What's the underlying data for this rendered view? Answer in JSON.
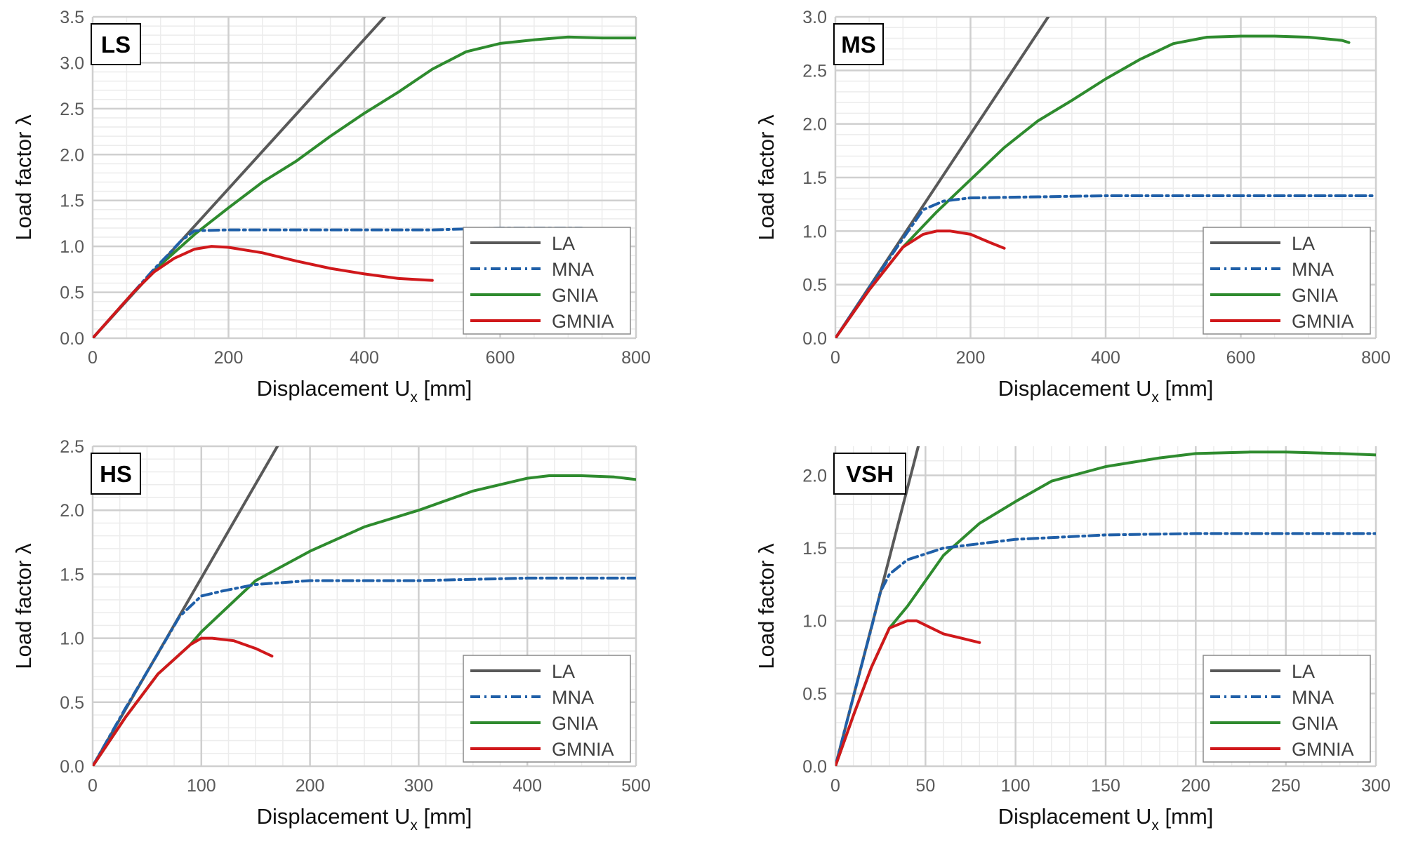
{
  "chart_data": [
    {
      "type": "line",
      "panel_label": "LS",
      "xlabel": "Displacement U",
      "xlabel_sub": "x",
      "xlabel_unit": "[mm]",
      "ylabel": "Load factor λ",
      "xlim": [
        0,
        800
      ],
      "ylim": [
        0,
        3.5
      ],
      "xticks": [
        0,
        200,
        400,
        600,
        800
      ],
      "xtick_labels": [
        "0",
        "200",
        "400",
        "600",
        "800"
      ],
      "yticks": [
        0,
        0.5,
        1.0,
        1.5,
        2.0,
        2.5,
        3.0,
        3.5
      ],
      "ytick_labels": [
        "0.0",
        "0.5",
        "1.0",
        "1.5",
        "2.0",
        "2.5",
        "3.0",
        "3.5"
      ],
      "x_minor": 50,
      "y_minor": 0.1,
      "legend": "bottom-right",
      "series": [
        {
          "name": "LA",
          "x": [
            0,
            430
          ],
          "y": [
            0,
            3.5
          ]
        },
        {
          "name": "MNA",
          "x": [
            0,
            30,
            60,
            90,
            110,
            130,
            150,
            200,
            300,
            400,
            500,
            600,
            720
          ],
          "y": [
            0,
            0.25,
            0.5,
            0.75,
            0.9,
            1.06,
            1.17,
            1.18,
            1.18,
            1.18,
            1.18,
            1.2,
            1.2
          ]
        },
        {
          "name": "GNIA",
          "x": [
            0,
            30,
            60,
            90,
            100,
            150,
            200,
            250,
            300,
            350,
            400,
            450,
            500,
            550,
            600,
            650,
            700,
            750,
            800
          ],
          "y": [
            0,
            0.25,
            0.5,
            0.72,
            0.8,
            1.13,
            1.42,
            1.7,
            1.93,
            2.2,
            2.45,
            2.68,
            2.93,
            3.12,
            3.21,
            3.25,
            3.28,
            3.27,
            3.27
          ]
        },
        {
          "name": "GMNIA",
          "x": [
            0,
            30,
            60,
            90,
            120,
            150,
            175,
            200,
            250,
            300,
            350,
            400,
            450,
            500
          ],
          "y": [
            0,
            0.25,
            0.5,
            0.72,
            0.87,
            0.97,
            1.0,
            0.99,
            0.93,
            0.84,
            0.76,
            0.7,
            0.65,
            0.63
          ]
        }
      ]
    },
    {
      "type": "line",
      "panel_label": "MS",
      "xlabel": "Displacement U",
      "xlabel_sub": "x",
      "xlabel_unit": "[mm]",
      "ylabel": "Load factor λ",
      "xlim": [
        0,
        800
      ],
      "ylim": [
        0,
        3.0
      ],
      "xticks": [
        0,
        200,
        400,
        600,
        800
      ],
      "xtick_labels": [
        "0",
        "200",
        "400",
        "600",
        "800"
      ],
      "yticks": [
        0,
        0.5,
        1.0,
        1.5,
        2.0,
        2.5,
        3.0
      ],
      "ytick_labels": [
        "0.0",
        "0.5",
        "1.0",
        "1.5",
        "2.0",
        "2.5",
        "3.0"
      ],
      "x_minor": 50,
      "y_minor": 0.1,
      "legend": "bottom-right",
      "series": [
        {
          "name": "LA",
          "x": [
            0,
            315
          ],
          "y": [
            0,
            3.0
          ]
        },
        {
          "name": "MNA",
          "x": [
            0,
            50,
            100,
            130,
            160,
            200,
            300,
            400,
            500,
            600,
            700,
            800
          ],
          "y": [
            0,
            0.47,
            0.93,
            1.2,
            1.28,
            1.31,
            1.32,
            1.33,
            1.33,
            1.33,
            1.33,
            1.33
          ]
        },
        {
          "name": "GNIA",
          "x": [
            0,
            50,
            100,
            150,
            200,
            250,
            300,
            350,
            400,
            450,
            500,
            550,
            600,
            650,
            700,
            750,
            760
          ],
          "y": [
            0,
            0.45,
            0.85,
            1.18,
            1.48,
            1.78,
            2.03,
            2.22,
            2.42,
            2.6,
            2.75,
            2.81,
            2.82,
            2.82,
            2.81,
            2.78,
            2.76
          ]
        },
        {
          "name": "GMNIA",
          "x": [
            0,
            50,
            100,
            130,
            150,
            170,
            200,
            230,
            250
          ],
          "y": [
            0,
            0.45,
            0.85,
            0.97,
            1.0,
            1.0,
            0.97,
            0.89,
            0.84
          ]
        }
      ]
    },
    {
      "type": "line",
      "panel_label": "HS",
      "xlabel": "Displacement U",
      "xlabel_sub": "x",
      "xlabel_unit": "[mm]",
      "ylabel": "Load factor λ",
      "xlim": [
        0,
        500
      ],
      "ylim": [
        0,
        2.5
      ],
      "xticks": [
        0,
        100,
        200,
        300,
        400,
        500
      ],
      "xtick_labels": [
        "0",
        "100",
        "200",
        "300",
        "400",
        "500"
      ],
      "yticks": [
        0,
        0.5,
        1.0,
        1.5,
        2.0,
        2.5
      ],
      "ytick_labels": [
        "0.0",
        "0.5",
        "1.0",
        "1.5",
        "2.0",
        "2.5"
      ],
      "x_minor": 25,
      "y_minor": 0.1,
      "legend": "bottom-right",
      "series": [
        {
          "name": "LA",
          "x": [
            0,
            170
          ],
          "y": [
            0,
            2.5
          ]
        },
        {
          "name": "MNA",
          "x": [
            0,
            30,
            60,
            80,
            100,
            120,
            150,
            200,
            300,
            400,
            500
          ],
          "y": [
            0,
            0.45,
            0.88,
            1.17,
            1.33,
            1.37,
            1.42,
            1.45,
            1.45,
            1.47,
            1.47
          ]
        },
        {
          "name": "GNIA",
          "x": [
            0,
            30,
            60,
            90,
            100,
            150,
            200,
            250,
            300,
            350,
            400,
            420,
            450,
            480,
            500
          ],
          "y": [
            0,
            0.38,
            0.72,
            0.95,
            1.05,
            1.45,
            1.68,
            1.87,
            2.0,
            2.15,
            2.25,
            2.27,
            2.27,
            2.26,
            2.24
          ]
        },
        {
          "name": "GMNIA",
          "x": [
            0,
            30,
            60,
            90,
            100,
            110,
            130,
            150,
            165
          ],
          "y": [
            0,
            0.38,
            0.72,
            0.95,
            1.0,
            1.0,
            0.98,
            0.92,
            0.86
          ]
        }
      ]
    },
    {
      "type": "line",
      "panel_label": "VSH",
      "xlabel": "Displacement U",
      "xlabel_sub": "x",
      "xlabel_unit": "[mm]",
      "ylabel": "Load factor λ",
      "xlim": [
        0,
        300
      ],
      "ylim": [
        0,
        2.2
      ],
      "xticks": [
        0,
        50,
        100,
        150,
        200,
        250,
        300
      ],
      "xtick_labels": [
        "0",
        "50",
        "100",
        "150",
        "200",
        "250",
        "300"
      ],
      "yticks": [
        0,
        0.5,
        1.0,
        1.5,
        2.0
      ],
      "ytick_labels": [
        "0.0",
        "0.5",
        "1.0",
        "1.5",
        "2.0"
      ],
      "x_minor": 10,
      "y_minor": 0.1,
      "legend": "bottom-right",
      "series": [
        {
          "name": "LA",
          "x": [
            0,
            46
          ],
          "y": [
            0,
            2.2
          ]
        },
        {
          "name": "MNA",
          "x": [
            0,
            10,
            20,
            25,
            30,
            40,
            60,
            100,
            150,
            200,
            250,
            300
          ],
          "y": [
            0,
            0.48,
            0.95,
            1.2,
            1.32,
            1.42,
            1.5,
            1.56,
            1.59,
            1.6,
            1.6,
            1.6
          ]
        },
        {
          "name": "GNIA",
          "x": [
            0,
            10,
            20,
            30,
            40,
            60,
            80,
            100,
            120,
            150,
            180,
            200,
            230,
            250,
            280,
            300
          ],
          "y": [
            0,
            0.35,
            0.68,
            0.95,
            1.1,
            1.45,
            1.67,
            1.82,
            1.96,
            2.06,
            2.12,
            2.15,
            2.16,
            2.16,
            2.15,
            2.14
          ]
        },
        {
          "name": "GMNIA",
          "x": [
            0,
            10,
            20,
            30,
            40,
            45,
            50,
            60,
            70,
            80
          ],
          "y": [
            0,
            0.35,
            0.68,
            0.95,
            1.0,
            1.0,
            0.97,
            0.91,
            0.88,
            0.85
          ]
        }
      ]
    }
  ],
  "series_colors": {
    "LA": "#595959",
    "MNA": "#1f5fa8",
    "GNIA": "#2e8b2e",
    "GMNIA": "#d0181b"
  }
}
